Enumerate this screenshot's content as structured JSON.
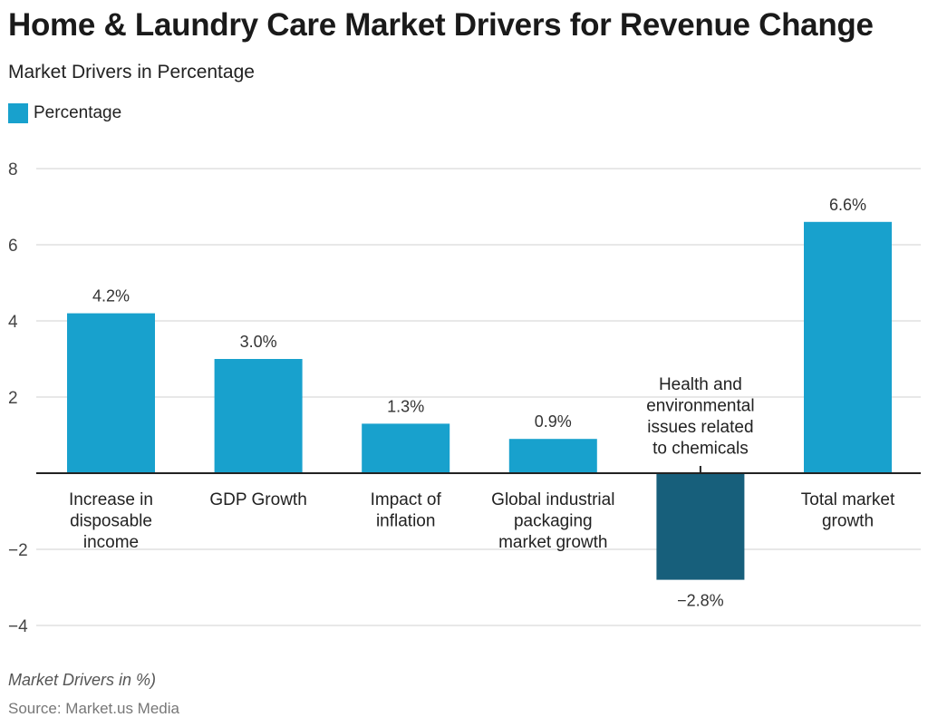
{
  "title": "Home & Laundry Care Market Drivers for Revenue Change",
  "subtitle": "Market Drivers in Percentage",
  "note": "Market Drivers in %)",
  "source": "Source: Market.us Media",
  "chart_data": {
    "type": "bar",
    "categories": [
      "Increase in\ndisposable\nincome",
      "GDP Growth",
      "Impact of\ninflation",
      "Global industrial\npackaging\nmarket growth",
      "Health and\nenvironmental\nissues related\nto chemicals",
      "Total market\ngrowth"
    ],
    "series": [
      {
        "name": "Percentage",
        "values": [
          4.2,
          3.0,
          1.3,
          0.9,
          -2.8,
          6.6
        ]
      }
    ],
    "data_labels": [
      "4.2%",
      "3.0%",
      "1.3%",
      "0.9%",
      "−2.8%",
      "6.6%"
    ],
    "yticks": [
      8,
      6,
      4,
      2,
      -2,
      -4
    ],
    "ytick_labels": [
      "8",
      "6",
      "4",
      "2",
      "−2",
      "−4"
    ],
    "ylim": [
      -4,
      8
    ],
    "grid": true,
    "legend": "top-left",
    "colors": {
      "positive": "#18a1cd",
      "negative": "#175f7b"
    }
  }
}
